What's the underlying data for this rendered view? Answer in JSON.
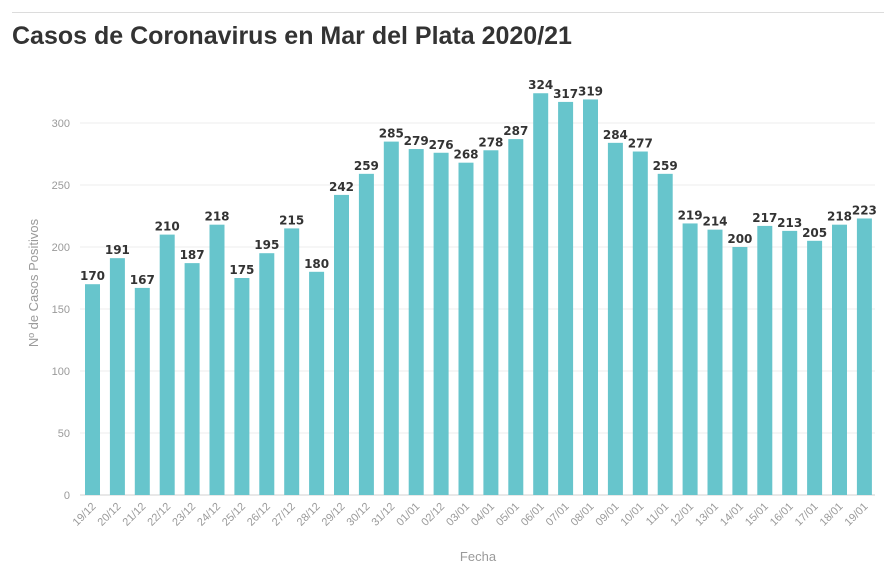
{
  "chart_data": {
    "type": "bar",
    "title": "Casos de Coronavirus en Mar del Plata 2020/21",
    "xlabel": "Fecha",
    "ylabel": "Nº de Casos Positivos",
    "ylim": [
      0,
      340
    ],
    "yticks": [
      0,
      50,
      100,
      150,
      200,
      250,
      300
    ],
    "grid": true,
    "bar_color": "#67c5cc",
    "categories": [
      "19/12",
      "20/12",
      "21/12",
      "22/12",
      "23/12",
      "24/12",
      "25/12",
      "26/12",
      "27/12",
      "28/12",
      "29/12",
      "30/12",
      "31/12",
      "01/01",
      "02/12",
      "03/01",
      "04/01",
      "05/01",
      "06/01",
      "07/01",
      "08/01",
      "09/01",
      "10/01",
      "11/01",
      "12/01",
      "13/01",
      "14/01",
      "15/01",
      "16/01",
      "17/01",
      "18/01",
      "19/01"
    ],
    "values": [
      170,
      191,
      167,
      210,
      187,
      218,
      175,
      195,
      215,
      180,
      242,
      259,
      285,
      279,
      276,
      268,
      278,
      287,
      324,
      317,
      319,
      284,
      277,
      259,
      219,
      214,
      200,
      217,
      213,
      205,
      218,
      223
    ]
  }
}
